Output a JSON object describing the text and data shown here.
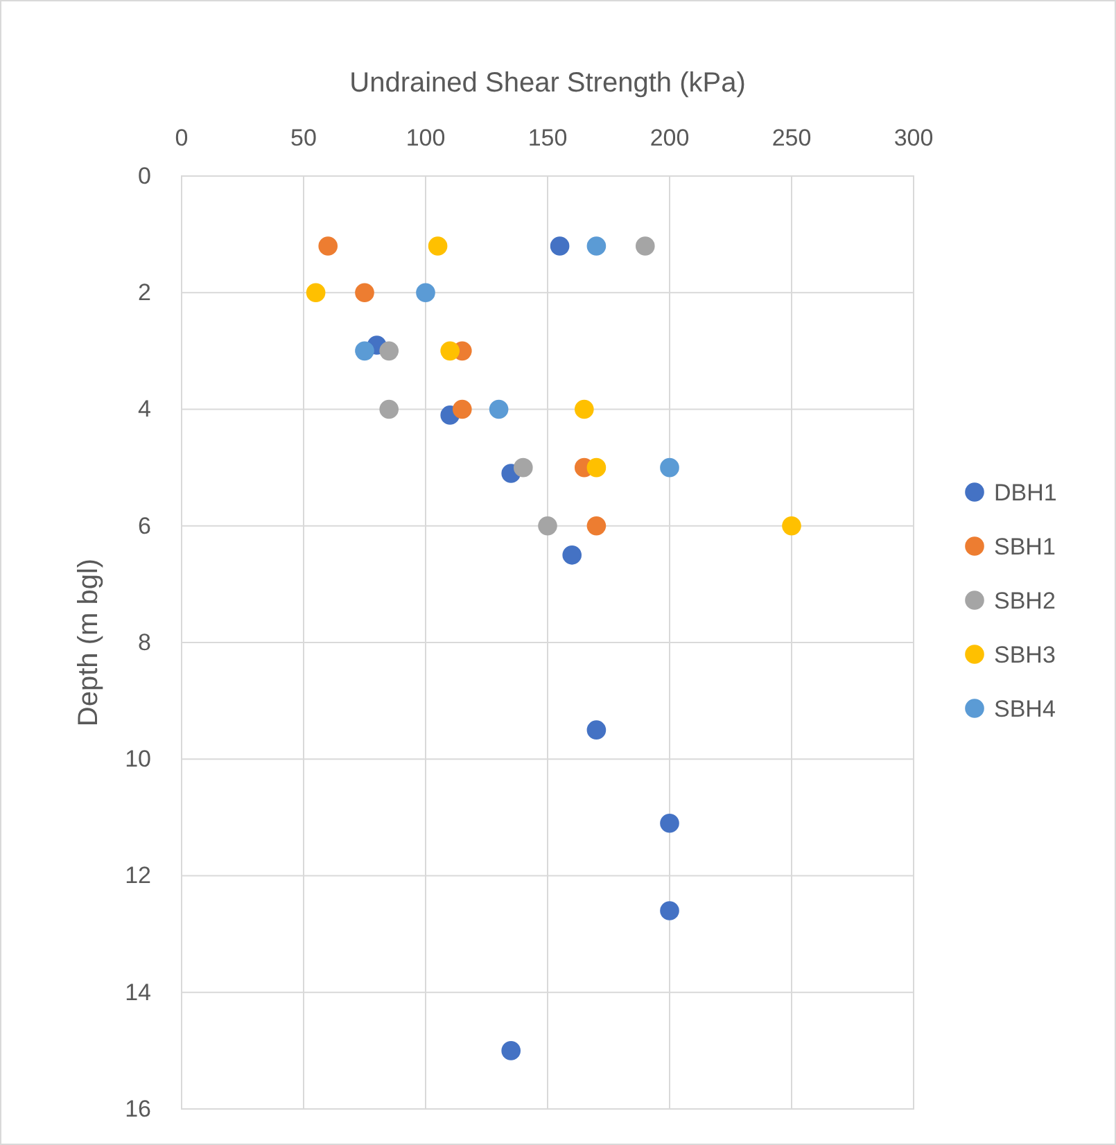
{
  "chart_data": {
    "type": "scatter",
    "xlabel": "Undrained Shear Strength (kPa)",
    "ylabel": "Depth (m bgl)",
    "xlim": [
      0,
      300
    ],
    "xticks": [
      0,
      50,
      100,
      150,
      200,
      250,
      300
    ],
    "ylim": [
      16,
      0
    ],
    "yticks": [
      0,
      2,
      4,
      6,
      8,
      10,
      12,
      14,
      16
    ],
    "grid": true,
    "legend": "right",
    "marker": "circle",
    "series": [
      {
        "name": "DBH1",
        "color": "#4472c4",
        "x": [
          155,
          80,
          110,
          135,
          160,
          170,
          200,
          200,
          135
        ],
        "values": [
          1.2,
          2.9,
          4.1,
          5.1,
          6.5,
          9.5,
          11.1,
          12.6,
          15
        ]
      },
      {
        "name": "SBH1",
        "color": "#ed7d31",
        "x": [
          60,
          75,
          115,
          115,
          165,
          170
        ],
        "values": [
          1.2,
          2,
          3,
          4,
          5,
          6
        ]
      },
      {
        "name": "SBH2",
        "color": "#a5a5a5",
        "x": [
          190,
          85,
          85,
          140,
          150
        ],
        "values": [
          1.2,
          3,
          4,
          5,
          6
        ]
      },
      {
        "name": "SBH3",
        "color": "#ffc000",
        "x": [
          105,
          55,
          110,
          165,
          170,
          250
        ],
        "values": [
          1.2,
          2,
          3,
          4,
          5,
          6
        ]
      },
      {
        "name": "SBH4",
        "color": "#5b9bd5",
        "x": [
          170,
          100,
          75,
          130,
          200
        ],
        "values": [
          1.2,
          2,
          3,
          4,
          5
        ]
      }
    ]
  }
}
